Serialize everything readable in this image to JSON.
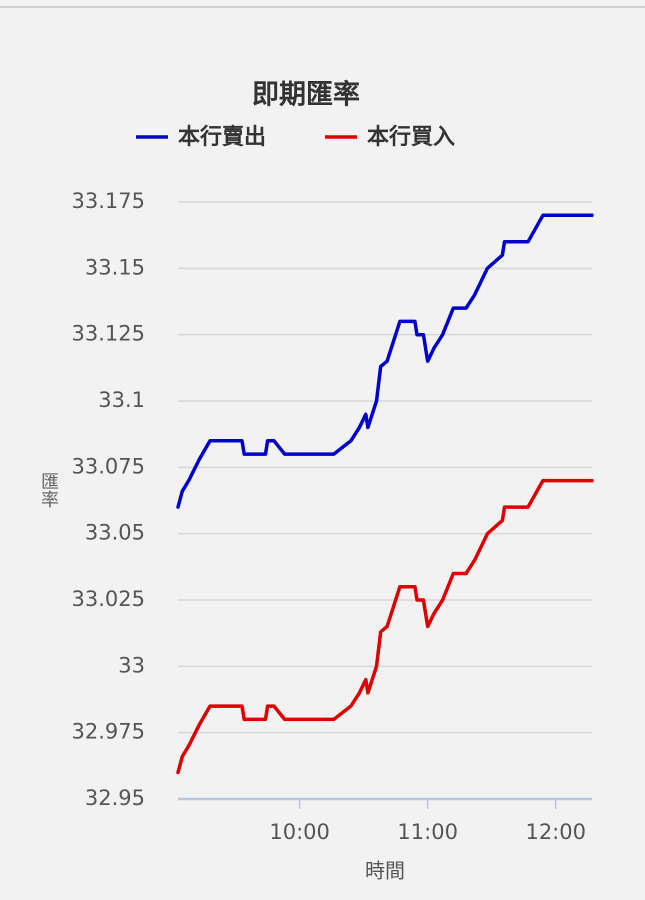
{
  "chart_data": {
    "type": "line",
    "title": "即期匯率",
    "x_label": "時間",
    "y_label": "匯率",
    "x": [
      "09:03",
      "09:05",
      "09:08",
      "09:13",
      "09:18",
      "09:33",
      "09:34",
      "09:44",
      "09:45",
      "09:48",
      "09:53",
      "10:16",
      "10:24",
      "10:28",
      "10:31",
      "10:32",
      "10:36",
      "10:38",
      "10:41",
      "10:47",
      "10:54",
      "10:55",
      "10:58",
      "11:00",
      "11:03",
      "11:07",
      "11:12",
      "11:18",
      "11:22",
      "11:28",
      "11:35",
      "11:36",
      "11:47",
      "11:54",
      "12:17"
    ],
    "series": [
      {
        "name": "本行賣出",
        "color": "#0000cc",
        "values": [
          33.06,
          33.066,
          33.07,
          33.078,
          33.085,
          33.085,
          33.08,
          33.08,
          33.085,
          33.085,
          33.08,
          33.08,
          33.085,
          33.09,
          33.095,
          33.09,
          33.1,
          33.113,
          33.115,
          33.13,
          33.13,
          33.125,
          33.125,
          33.115,
          33.12,
          33.125,
          33.135,
          33.135,
          33.14,
          33.15,
          33.155,
          33.16,
          33.16,
          33.17,
          33.17
        ]
      },
      {
        "name": "本行買入",
        "color": "#dd0000",
        "values": [
          32.96,
          32.966,
          32.97,
          32.978,
          32.985,
          32.985,
          32.98,
          32.98,
          32.985,
          32.985,
          32.98,
          32.98,
          32.985,
          32.99,
          32.995,
          32.99,
          33,
          33.013,
          33.015,
          33.03,
          33.03,
          33.025,
          33.025,
          33.015,
          33.02,
          33.025,
          33.035,
          33.035,
          33.04,
          33.05,
          33.055,
          33.06,
          33.06,
          33.07,
          33.07
        ]
      }
    ],
    "xlim": [
      "09:03",
      "12:17"
    ],
    "xticks": [
      "10:00",
      "11:00",
      "12:00"
    ],
    "ylim": [
      32.95,
      33.175
    ],
    "yticks": [
      33.175,
      33.15,
      33.125,
      33.1,
      33.075,
      33.05,
      33.025,
      33,
      32.975,
      32.95
    ],
    "grid": true,
    "legend": "top"
  }
}
